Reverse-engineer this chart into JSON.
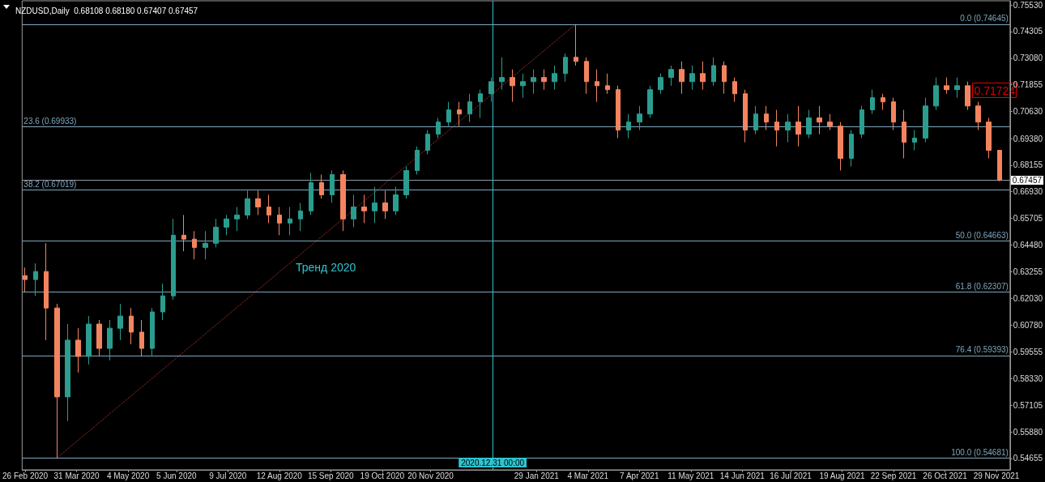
{
  "chart_data": {
    "type": "candlestick",
    "title": "NZDUSD,Daily  0.68108 0.68180 0.67407 0.67457",
    "xlim": [
      "2020-02-24",
      "2021-12-08"
    ],
    "xticks": [
      {
        "value": "2020-02-26",
        "label": "26 Feb 2020"
      },
      {
        "value": "2020-03-31",
        "label": "31 Mar 2020"
      },
      {
        "value": "2020-05-04",
        "label": "4 May 2020"
      },
      {
        "value": "2020-06-05",
        "label": "5 Jun 2020"
      },
      {
        "value": "2020-07-09",
        "label": "9 Jul 2020"
      },
      {
        "value": "2020-08-12",
        "label": "12 Aug 2020"
      },
      {
        "value": "2020-09-15",
        "label": "15 Sep 2020"
      },
      {
        "value": "2020-10-19",
        "label": "19 Oct 2020"
      },
      {
        "value": "2020-11-20",
        "label": "20 Nov 2020"
      },
      {
        "value": "2021-01-29",
        "label": "29 Jan 2021"
      },
      {
        "value": "2021-03-04",
        "label": "4 Mar 2021"
      },
      {
        "value": "2021-04-07",
        "label": "7 Apr 2021"
      },
      {
        "value": "2021-05-11",
        "label": "11 May 2021"
      },
      {
        "value": "2021-06-14",
        "label": "14 Jun 2021"
      },
      {
        "value": "2021-07-16",
        "label": "16 Jul 2021"
      },
      {
        "value": "2021-08-19",
        "label": "19 Aug 2021"
      },
      {
        "value": "2021-09-22",
        "label": "22 Sep 2021"
      },
      {
        "value": "2021-10-26",
        "label": "26 Oct 2021"
      },
      {
        "value": "2021-11-29",
        "label": "29 Nov 2021"
      }
    ],
    "ylim": [
      0.5413,
      0.7572
    ],
    "yticks": [
      {
        "value": 0.7553,
        "label": "0.75530"
      },
      {
        "value": 0.74305,
        "label": "0.74305"
      },
      {
        "value": 0.7308,
        "label": "0.73080"
      },
      {
        "value": 0.71855,
        "label": "0.71855"
      },
      {
        "value": 0.7063,
        "label": "0.70630"
      },
      {
        "value": 0.6938,
        "label": "0.69380"
      },
      {
        "value": 0.68155,
        "label": "0.68155"
      },
      {
        "value": 0.6693,
        "label": "0.66930"
      },
      {
        "value": 0.65705,
        "label": "0.65705"
      },
      {
        "value": 0.6448,
        "label": "0.64480"
      },
      {
        "value": 0.63255,
        "label": "0.63255"
      },
      {
        "value": 0.6203,
        "label": "0.62030"
      },
      {
        "value": 0.6078,
        "label": "0.60780"
      },
      {
        "value": 0.59555,
        "label": "0.59555"
      },
      {
        "value": 0.5833,
        "label": "0.58330"
      },
      {
        "value": 0.57105,
        "label": "0.57105"
      },
      {
        "value": 0.5588,
        "label": "0.55880"
      },
      {
        "value": 0.54655,
        "label": "0.54655"
      }
    ],
    "series": [
      {
        "colors": [
          "#f4845f",
          "#2a9d8f",
          "#f4845f",
          "#f4845f",
          "#2a9d8f",
          "#f4845f",
          "#2a9d8f",
          "#f4845f",
          "#2a9d8f",
          "#2a9d8f",
          "#f4845f",
          "#f4845f",
          "#2a9d8f",
          "#2a9d8f",
          "#2a9d8f",
          "#f4845f",
          "#f4845f",
          "#2a9d8f",
          "#2a9d8f",
          "#2a9d8f",
          "#2a9d8f",
          "#2a9d8f",
          "#f4845f",
          "#f4845f",
          "#f4845f",
          "#2a9d8f",
          "#2a9d8f",
          "#2a9d8f",
          "#f4845f",
          "#2a9d8f",
          "#f4845f",
          "#2a9d8f",
          "#f4845f",
          "#2a9d8f",
          "#f4845f",
          "#2a9d8f",
          "#2a9d8f",
          "#2a9d8f",
          "#2a9d8f",
          "#2a9d8f",
          "#2a9d8f",
          "#f4845f",
          "#2a9d8f",
          "#2a9d8f",
          "#2a9d8f",
          "#2a9d8f",
          "#f4845f",
          "#2a9d8f",
          "#2a9d8f",
          "#f4845f",
          "#2a9d8f",
          "#2a9d8f",
          "#f4845f",
          "#f4845f",
          "#f4845f",
          "#f4845f",
          "#f4845f",
          "#2a9d8f",
          "#2a9d8f",
          "#2a9d8f",
          "#2a9d8f",
          "#2a9d8f",
          "#f4845f",
          "#2a9d8f",
          "#f4845f",
          "#2a9d8f",
          "#f4845f",
          "#f4845f",
          "#f4845f",
          "#2a9d8f",
          "#f4845f",
          "#f4845f",
          "#2a9d8f",
          "#f4845f",
          "#2a9d8f",
          "#f4845f",
          "#f4845f",
          "#f4845f",
          "#2a9d8f",
          "#2a9d8f",
          "#2a9d8f",
          "#f4845f",
          "#f4845f",
          "#f4845f",
          "#2a9d8f",
          "#2a9d8f",
          "#2a9d8f",
          "#f4845f",
          "#2a9d8f",
          "#f4845f",
          "#f4845f",
          "#f4845f",
          "#f4845f"
        ],
        "x": [
          "2020-02-26",
          "2020-03-04",
          "2020-03-11",
          "2020-03-18",
          "2020-03-25",
          "2020-04-01",
          "2020-04-08",
          "2020-04-15",
          "2020-04-22",
          "2020-04-29",
          "2020-05-06",
          "2020-05-13",
          "2020-05-20",
          "2020-05-27",
          "2020-06-03",
          "2020-06-10",
          "2020-06-17",
          "2020-06-24",
          "2020-07-01",
          "2020-07-08",
          "2020-07-15",
          "2020-07-22",
          "2020-07-29",
          "2020-08-05",
          "2020-08-12",
          "2020-08-19",
          "2020-08-26",
          "2020-09-02",
          "2020-09-09",
          "2020-09-16",
          "2020-09-23",
          "2020-09-30",
          "2020-10-07",
          "2020-10-14",
          "2020-10-21",
          "2020-10-28",
          "2020-11-04",
          "2020-11-11",
          "2020-11-18",
          "2020-11-25",
          "2020-12-02",
          "2020-12-09",
          "2020-12-16",
          "2020-12-23",
          "2020-12-30",
          "2021-01-06",
          "2021-01-13",
          "2021-01-20",
          "2021-01-27",
          "2021-02-03",
          "2021-02-10",
          "2021-02-17",
          "2021-02-24",
          "2021-03-03",
          "2021-03-10",
          "2021-03-17",
          "2021-03-24",
          "2021-03-31",
          "2021-04-07",
          "2021-04-14",
          "2021-04-21",
          "2021-04-28",
          "2021-05-05",
          "2021-05-12",
          "2021-05-19",
          "2021-05-26",
          "2021-06-02",
          "2021-06-09",
          "2021-06-16",
          "2021-06-23",
          "2021-06-30",
          "2021-07-07",
          "2021-07-14",
          "2021-07-21",
          "2021-07-28",
          "2021-08-04",
          "2021-08-11",
          "2021-08-18",
          "2021-08-25",
          "2021-09-01",
          "2021-09-08",
          "2021-09-15",
          "2021-09-22",
          "2021-09-29",
          "2021-10-06",
          "2021-10-13",
          "2021-10-20",
          "2021-10-27",
          "2021-11-03",
          "2021-11-10",
          "2021-11-17",
          "2021-11-24",
          "2021-12-01"
        ],
        "ohlc": [
          [
            0.6307,
            0.6344,
            0.6233,
            0.6289
          ],
          [
            0.6289,
            0.6363,
            0.6214,
            0.6326
          ],
          [
            0.6326,
            0.6456,
            0.601,
            0.6158
          ],
          [
            0.6158,
            0.6177,
            0.5468,
            0.5749
          ],
          [
            0.5749,
            0.6084,
            0.5638,
            0.601
          ],
          [
            0.601,
            0.6065,
            0.5861,
            0.5935
          ],
          [
            0.5935,
            0.6121,
            0.5898,
            0.6084
          ],
          [
            0.6084,
            0.6103,
            0.5935,
            0.5972
          ],
          [
            0.5972,
            0.6103,
            0.5917,
            0.6065
          ],
          [
            0.6065,
            0.6177,
            0.601,
            0.6121
          ],
          [
            0.6121,
            0.6158,
            0.5991,
            0.6047
          ],
          [
            0.6047,
            0.6103,
            0.5935,
            0.5972
          ],
          [
            0.5972,
            0.6158,
            0.5935,
            0.614
          ],
          [
            0.614,
            0.627,
            0.6103,
            0.6214
          ],
          [
            0.6214,
            0.6568,
            0.6196,
            0.6493
          ],
          [
            0.6493,
            0.6586,
            0.6419,
            0.6475
          ],
          [
            0.6475,
            0.6512,
            0.6382,
            0.6437
          ],
          [
            0.6437,
            0.6512,
            0.6382,
            0.6456
          ],
          [
            0.6456,
            0.6568,
            0.6437,
            0.653
          ],
          [
            0.653,
            0.6586,
            0.6493,
            0.6568
          ],
          [
            0.6568,
            0.6623,
            0.6512,
            0.6586
          ],
          [
            0.6586,
            0.6698,
            0.6568,
            0.6661
          ],
          [
            0.6661,
            0.6698,
            0.6586,
            0.6623
          ],
          [
            0.6623,
            0.6679,
            0.6549,
            0.6586
          ],
          [
            0.6586,
            0.6623,
            0.6493,
            0.6549
          ],
          [
            0.6549,
            0.6623,
            0.6493,
            0.6568
          ],
          [
            0.6568,
            0.6642,
            0.6512,
            0.6605
          ],
          [
            0.6605,
            0.678,
            0.6586,
            0.6735
          ],
          [
            0.6735,
            0.6772,
            0.6661,
            0.6679
          ],
          [
            0.6679,
            0.6791,
            0.6642,
            0.6772
          ],
          [
            0.6772,
            0.6791,
            0.6512,
            0.6568
          ],
          [
            0.6568,
            0.6679,
            0.653,
            0.6623
          ],
          [
            0.6623,
            0.6679,
            0.6549,
            0.6605
          ],
          [
            0.6605,
            0.6716,
            0.6549,
            0.6642
          ],
          [
            0.6642,
            0.6698,
            0.6568,
            0.6605
          ],
          [
            0.6605,
            0.6716,
            0.6586,
            0.6679
          ],
          [
            0.6679,
            0.6809,
            0.6661,
            0.6791
          ],
          [
            0.6791,
            0.6902,
            0.6772,
            0.6884
          ],
          [
            0.6884,
            0.6977,
            0.6865,
            0.6958
          ],
          [
            0.6958,
            0.7033,
            0.694,
            0.7014
          ],
          [
            0.7014,
            0.7107,
            0.6995,
            0.707
          ],
          [
            0.707,
            0.7107,
            0.6995,
            0.7051
          ],
          [
            0.7051,
            0.7144,
            0.7014,
            0.7107
          ],
          [
            0.7107,
            0.7163,
            0.7033,
            0.7144
          ],
          [
            0.7144,
            0.7219,
            0.7107,
            0.72
          ],
          [
            0.72,
            0.7312,
            0.7163,
            0.7219
          ],
          [
            0.7219,
            0.7256,
            0.7107,
            0.7181
          ],
          [
            0.7181,
            0.7237,
            0.7126,
            0.72
          ],
          [
            0.72,
            0.7256,
            0.7144,
            0.7219
          ],
          [
            0.7219,
            0.7256,
            0.7163,
            0.72
          ],
          [
            0.72,
            0.7274,
            0.7163,
            0.7237
          ],
          [
            0.7237,
            0.733,
            0.72,
            0.7312
          ],
          [
            0.7312,
            0.7464,
            0.7274,
            0.7293
          ],
          [
            0.7293,
            0.7312,
            0.7144,
            0.72
          ],
          [
            0.72,
            0.7256,
            0.7107,
            0.7181
          ],
          [
            0.7181,
            0.7237,
            0.7144,
            0.7163
          ],
          [
            0.7163,
            0.7181,
            0.694,
            0.6977
          ],
          [
            0.6977,
            0.7051,
            0.694,
            0.7014
          ],
          [
            0.7014,
            0.7088,
            0.6977,
            0.7051
          ],
          [
            0.7051,
            0.7181,
            0.7033,
            0.7163
          ],
          [
            0.7163,
            0.7237,
            0.7144,
            0.7219
          ],
          [
            0.7219,
            0.7274,
            0.7181,
            0.7256
          ],
          [
            0.7256,
            0.7293,
            0.7144,
            0.72
          ],
          [
            0.72,
            0.7274,
            0.7163,
            0.7237
          ],
          [
            0.7237,
            0.7293,
            0.7163,
            0.72
          ],
          [
            0.72,
            0.7312,
            0.7181,
            0.7274
          ],
          [
            0.7274,
            0.7293,
            0.7144,
            0.72
          ],
          [
            0.72,
            0.7219,
            0.7107,
            0.7144
          ],
          [
            0.7144,
            0.7163,
            0.6921,
            0.6977
          ],
          [
            0.6977,
            0.7088,
            0.6958,
            0.7051
          ],
          [
            0.7051,
            0.7088,
            0.6977,
            0.7014
          ],
          [
            0.7014,
            0.707,
            0.6902,
            0.6977
          ],
          [
            0.6977,
            0.7051,
            0.6921,
            0.7014
          ],
          [
            0.7014,
            0.7088,
            0.6902,
            0.6958
          ],
          [
            0.6958,
            0.707,
            0.694,
            0.7033
          ],
          [
            0.7033,
            0.7088,
            0.6958,
            0.7014
          ],
          [
            0.7014,
            0.7051,
            0.6977,
            0.6995
          ],
          [
            0.6995,
            0.7014,
            0.6791,
            0.6847
          ],
          [
            0.6847,
            0.6977,
            0.6809,
            0.6958
          ],
          [
            0.6958,
            0.7088,
            0.694,
            0.707
          ],
          [
            0.707,
            0.7163,
            0.7051,
            0.7126
          ],
          [
            0.7126,
            0.7144,
            0.707,
            0.7107
          ],
          [
            0.7107,
            0.7126,
            0.6977,
            0.7014
          ],
          [
            0.7014,
            0.707,
            0.6847,
            0.6921
          ],
          [
            0.6921,
            0.6977,
            0.6884,
            0.694
          ],
          [
            0.694,
            0.7126,
            0.6921,
            0.7088
          ],
          [
            0.7088,
            0.7219,
            0.707,
            0.7181
          ],
          [
            0.7181,
            0.7219,
            0.7144,
            0.7163
          ],
          [
            0.7163,
            0.7219,
            0.7126,
            0.7181
          ],
          [
            0.7181,
            0.72,
            0.707,
            0.7088
          ],
          [
            0.7088,
            0.7107,
            0.6977,
            0.7014
          ],
          [
            0.7014,
            0.7033,
            0.6847,
            0.6884
          ],
          [
            0.6884,
            0.6884,
            0.6741,
            0.67457
          ]
        ]
      },
      {
        "type": "line",
        "x": [
          "2020-03-18",
          "2021-02-24"
        ],
        "values": [
          0.5468,
          0.7465
        ],
        "color": "#c0392b",
        "line_style": "dotted"
      }
    ],
    "ref_lines": [
      {
        "axis": "y",
        "value": 0.74645,
        "label": "0.0 (0.74645)",
        "color": "#7fa7bd"
      },
      {
        "axis": "y",
        "value": 0.69933,
        "label": "23.6 (0.69933)",
        "color": "#7fa7bd"
      },
      {
        "axis": "y",
        "value": 0.67019,
        "label": "38.2 (0.67019)",
        "color": "#7fa7bd"
      },
      {
        "axis": "y",
        "value": 0.64663,
        "label": "50.0 (0.64663)",
        "color": "#7fa7bd"
      },
      {
        "axis": "y",
        "value": 0.62307,
        "label": "61.8 (0.62307)",
        "color": "#7fa7bd"
      },
      {
        "axis": "y",
        "value": 0.59393,
        "label": "76.4 (0.59393)",
        "color": "#7fa7bd"
      },
      {
        "axis": "y",
        "value": 0.54681,
        "label": "100.0 (0.54681)",
        "color": "#7fa7bd"
      },
      {
        "axis": "y",
        "value": 0.67457,
        "label": "0.67457",
        "color": "#8e9aa3"
      },
      {
        "axis": "x",
        "value": "2020-12-31",
        "label": "2020.12.31 00:00",
        "color": "#2ec4d0"
      }
    ],
    "annotations": [
      "Тренд 2020",
      "0.71724"
    ]
  }
}
